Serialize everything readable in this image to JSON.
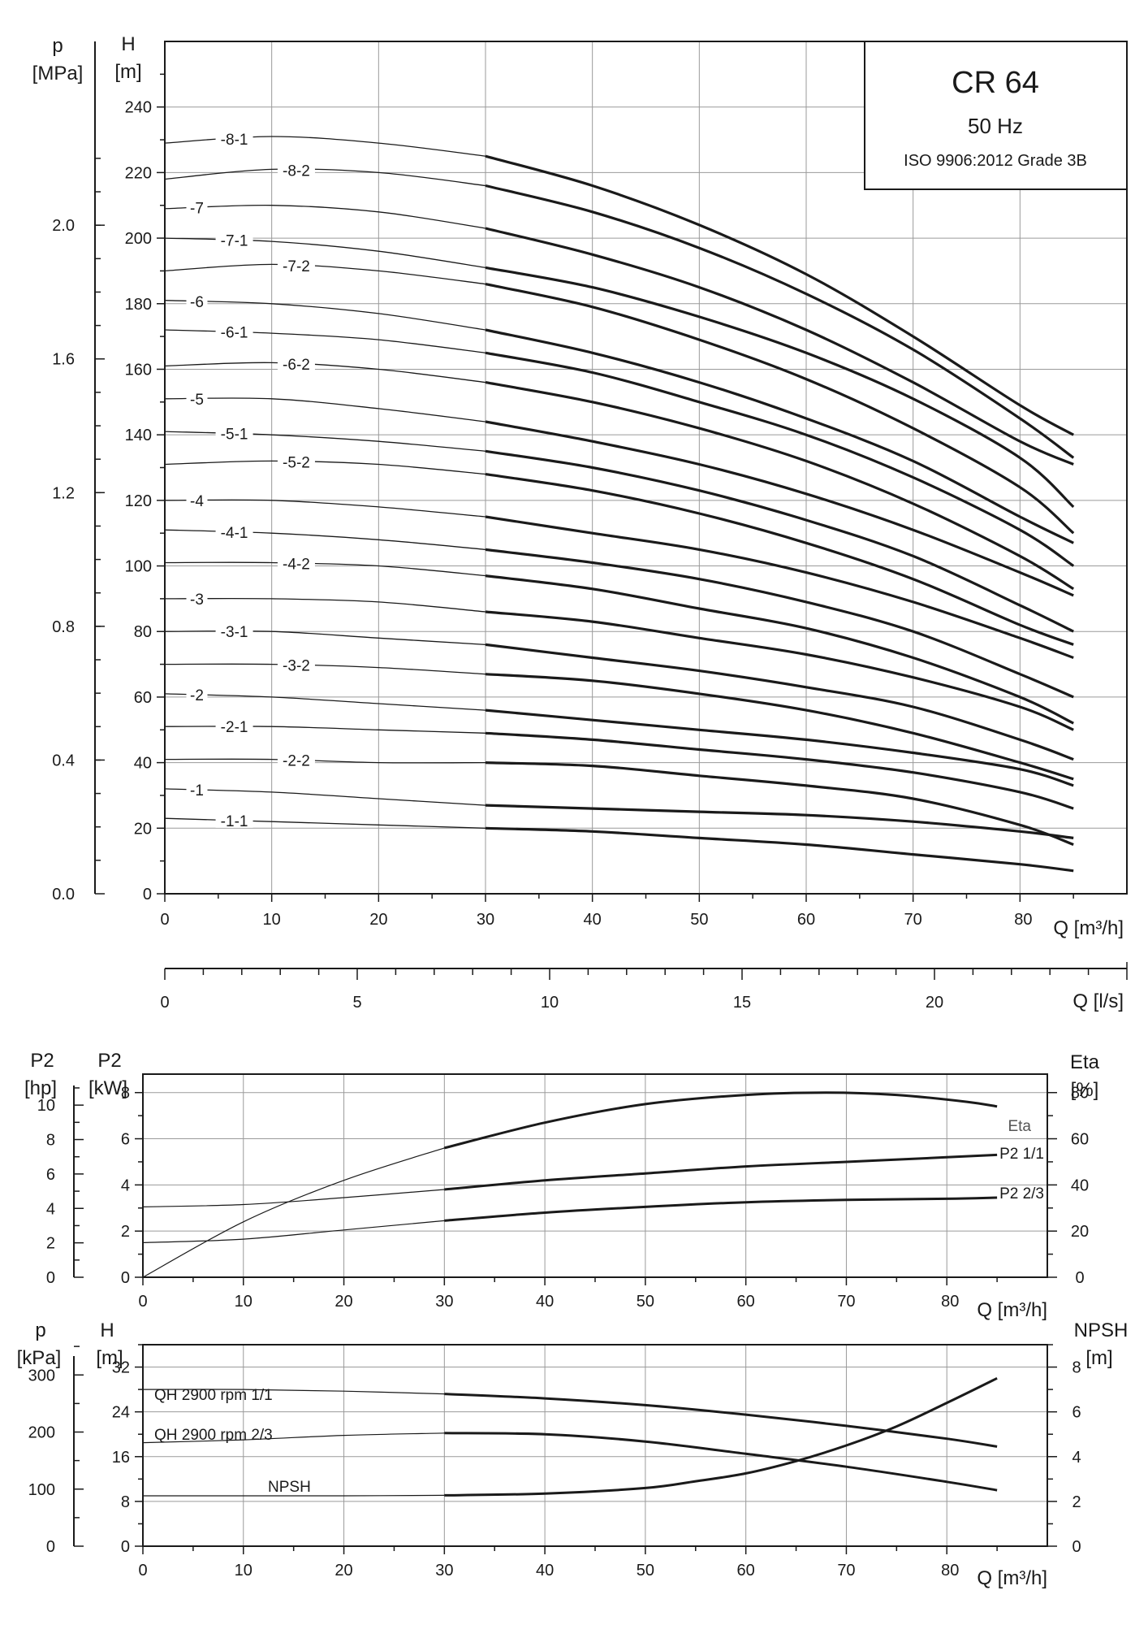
{
  "chart_data": [
    {
      "type": "line",
      "title": "CR 64",
      "subtitle": "50 Hz",
      "note": "ISO 9906:2012 Grade 3B",
      "xlabel": "Q [m³/h]",
      "xlabel_secondary": "Q [l/s]",
      "ylabel_left_p": "p",
      "ylabel_left_p_unit": "[MPa]",
      "ylabel_H": "H",
      "ylabel_H_unit": "[m]",
      "x_ticks": [
        "0",
        "10",
        "20",
        "30",
        "40",
        "50",
        "60",
        "70",
        "80"
      ],
      "x_secondary_ticks": [
        "0",
        "5",
        "10",
        "15",
        "20"
      ],
      "y_ticks": [
        "0",
        "20",
        "40",
        "60",
        "80",
        "100",
        "120",
        "140",
        "160",
        "180",
        "200",
        "220",
        "240"
      ],
      "p_ticks": [
        "0.0",
        "0.4",
        "0.8",
        "1.2",
        "1.6",
        "2.0"
      ],
      "xlim": [
        0,
        90
      ],
      "ylim": [
        0,
        260
      ],
      "curve_style": "thin from 0 to 30 m³/h, thick from 30 to 85 m³/h",
      "series": [
        {
          "name": "8-1",
          "x": [
            0,
            10,
            20,
            30,
            40,
            50,
            60,
            70,
            80,
            85
          ],
          "values": [
            229,
            231,
            229,
            225,
            216,
            204,
            189,
            170,
            149,
            140
          ]
        },
        {
          "name": "8-2",
          "x": [
            0,
            10,
            20,
            30,
            40,
            50,
            60,
            70,
            80,
            85
          ],
          "values": [
            218,
            221,
            220,
            216,
            208,
            197,
            183,
            166,
            145,
            133
          ]
        },
        {
          "name": "7",
          "x": [
            0,
            10,
            20,
            30,
            40,
            50,
            60,
            70,
            80,
            85
          ],
          "values": [
            209,
            210,
            208,
            203,
            195,
            185,
            172,
            156,
            138,
            131
          ]
        },
        {
          "name": "7-1",
          "x": [
            0,
            10,
            20,
            30,
            40,
            50,
            60,
            70,
            80,
            85
          ],
          "values": [
            200,
            199,
            196,
            191,
            185,
            176,
            165,
            151,
            133,
            118
          ]
        },
        {
          "name": "7-2",
          "x": [
            0,
            10,
            20,
            30,
            40,
            50,
            60,
            70,
            80,
            85
          ],
          "values": [
            190,
            192,
            190,
            186,
            179,
            169,
            157,
            142,
            124,
            110
          ]
        },
        {
          "name": "6",
          "x": [
            0,
            10,
            20,
            30,
            40,
            50,
            60,
            70,
            80,
            85
          ],
          "values": [
            181,
            180,
            177,
            172,
            165,
            156,
            145,
            132,
            115,
            107
          ]
        },
        {
          "name": "6-1",
          "x": [
            0,
            10,
            20,
            30,
            40,
            50,
            60,
            70,
            80,
            85
          ],
          "values": [
            172,
            171,
            169,
            165,
            159,
            150,
            140,
            127,
            111,
            100
          ]
        },
        {
          "name": "6-2",
          "x": [
            0,
            10,
            20,
            30,
            40,
            50,
            60,
            70,
            80,
            85
          ],
          "values": [
            161,
            162,
            160,
            156,
            150,
            142,
            132,
            119,
            103,
            93
          ]
        },
        {
          "name": "5",
          "x": [
            0,
            10,
            20,
            30,
            40,
            50,
            60,
            70,
            80,
            85
          ],
          "values": [
            151,
            151,
            148,
            144,
            138,
            131,
            122,
            111,
            98,
            91
          ]
        },
        {
          "name": "5-1",
          "x": [
            0,
            10,
            20,
            30,
            40,
            50,
            60,
            70,
            80,
            85
          ],
          "values": [
            141,
            140,
            138,
            135,
            130,
            123,
            114,
            103,
            88,
            80
          ]
        },
        {
          "name": "5-2",
          "x": [
            0,
            10,
            20,
            30,
            40,
            50,
            60,
            70,
            80,
            85
          ],
          "values": [
            131,
            132,
            131,
            128,
            123,
            116,
            107,
            96,
            82,
            76
          ]
        },
        {
          "name": "4",
          "x": [
            0,
            10,
            20,
            30,
            40,
            50,
            60,
            70,
            80,
            85
          ],
          "values": [
            120,
            120,
            118,
            115,
            110,
            105,
            98,
            89,
            78,
            72
          ]
        },
        {
          "name": "4-1",
          "x": [
            0,
            10,
            20,
            30,
            40,
            50,
            60,
            70,
            80,
            85
          ],
          "values": [
            111,
            110,
            108,
            105,
            101,
            96,
            89,
            80,
            67,
            60
          ]
        },
        {
          "name": "4-2",
          "x": [
            0,
            10,
            20,
            30,
            40,
            50,
            60,
            70,
            80,
            85
          ],
          "values": [
            101,
            101,
            100,
            97,
            93,
            87,
            81,
            72,
            60,
            52
          ]
        },
        {
          "name": "3",
          "x": [
            0,
            10,
            20,
            30,
            40,
            50,
            60,
            70,
            80,
            85
          ],
          "values": [
            90,
            90,
            89,
            86,
            83,
            78,
            73,
            66,
            57,
            50
          ]
        },
        {
          "name": "3-1",
          "x": [
            0,
            10,
            20,
            30,
            40,
            50,
            60,
            70,
            80,
            85
          ],
          "values": [
            80,
            80,
            78,
            76,
            72,
            68,
            63,
            57,
            47,
            41
          ]
        },
        {
          "name": "3-2",
          "x": [
            0,
            10,
            20,
            30,
            40,
            50,
            60,
            70,
            80,
            85
          ],
          "values": [
            70,
            70,
            69,
            67,
            65,
            61,
            56,
            49,
            40,
            35
          ]
        },
        {
          "name": "2",
          "x": [
            0,
            10,
            20,
            30,
            40,
            50,
            60,
            70,
            80,
            85
          ],
          "values": [
            61,
            60,
            58,
            56,
            53,
            50,
            47,
            43,
            38,
            33
          ]
        },
        {
          "name": "2-1",
          "x": [
            0,
            10,
            20,
            30,
            40,
            50,
            60,
            70,
            80,
            85
          ],
          "values": [
            51,
            51,
            50,
            49,
            47,
            44,
            41,
            37,
            31,
            26
          ]
        },
        {
          "name": "2-2",
          "x": [
            0,
            10,
            20,
            30,
            40,
            50,
            60,
            70,
            80,
            85
          ],
          "values": [
            41,
            41,
            40,
            40,
            39,
            36,
            33,
            29,
            21,
            15
          ]
        },
        {
          "name": "1",
          "x": [
            0,
            10,
            20,
            30,
            40,
            50,
            60,
            70,
            80,
            85
          ],
          "values": [
            32,
            31,
            29,
            27,
            26,
            25,
            24,
            22,
            19,
            17
          ]
        },
        {
          "name": "1-1",
          "x": [
            0,
            10,
            20,
            30,
            40,
            50,
            60,
            70,
            80,
            85
          ],
          "values": [
            23,
            22,
            21,
            20,
            19,
            17,
            15,
            12,
            9,
            7
          ]
        }
      ]
    },
    {
      "type": "line",
      "xlabel": "Q [m³/h]",
      "ylabel_left_hp": "P2",
      "ylabel_left_hp_unit": "[hp]",
      "ylabel_left_kw": "P2",
      "ylabel_left_kw_unit": "[kW]",
      "ylabel_right": "Eta",
      "ylabel_right_unit": "[%]",
      "x_ticks": [
        "0",
        "10",
        "20",
        "30",
        "40",
        "50",
        "60",
        "70",
        "80"
      ],
      "kw_ticks": [
        "0",
        "2",
        "4",
        "6",
        "8"
      ],
      "hp_ticks": [
        "0",
        "2",
        "4",
        "6",
        "8",
        "10"
      ],
      "eta_ticks": [
        "0",
        "20",
        "40",
        "60",
        "80"
      ],
      "xlim": [
        0,
        90
      ],
      "ylim_kw": [
        0,
        8.8
      ],
      "ylim_eta": [
        0,
        88
      ],
      "series": [
        {
          "name": "Eta",
          "axis": "eta",
          "x": [
            0,
            10,
            20,
            30,
            40,
            50,
            60,
            68,
            75,
            82,
            85
          ],
          "values": [
            0,
            24,
            42,
            56,
            67,
            75,
            79,
            80,
            79,
            76,
            74
          ]
        },
        {
          "name": "P2 1/1",
          "axis": "kw",
          "x": [
            0,
            10,
            20,
            30,
            40,
            50,
            60,
            70,
            80,
            85
          ],
          "values": [
            3.05,
            3.15,
            3.45,
            3.8,
            4.2,
            4.5,
            4.8,
            5.0,
            5.2,
            5.3
          ]
        },
        {
          "name": "P2 2/3",
          "axis": "kw",
          "x": [
            0,
            10,
            20,
            30,
            40,
            50,
            60,
            70,
            80,
            85
          ],
          "values": [
            1.5,
            1.65,
            2.05,
            2.45,
            2.8,
            3.05,
            3.25,
            3.35,
            3.4,
            3.45
          ]
        }
      ]
    },
    {
      "type": "line",
      "xlabel": "Q [m³/h]",
      "ylabel_left_p": "p",
      "ylabel_left_p_unit": "[kPa]",
      "ylabel_H": "H",
      "ylabel_H_unit": "[m]",
      "ylabel_right": "NPSH",
      "ylabel_right_unit": "[m]",
      "x_ticks": [
        "0",
        "10",
        "20",
        "30",
        "40",
        "50",
        "60",
        "70",
        "80"
      ],
      "h_ticks": [
        "0",
        "8",
        "16",
        "24",
        "32"
      ],
      "kpa_ticks": [
        "0",
        "100",
        "200",
        "300"
      ],
      "npsh_ticks": [
        "0",
        "2",
        "4",
        "6",
        "8"
      ],
      "xlim": [
        0,
        90
      ],
      "ylim_h": [
        0,
        36
      ],
      "ylim_npsh": [
        0,
        9
      ],
      "series": [
        {
          "name": "QH 2900 rpm 1/1",
          "axis": "h",
          "x": [
            0,
            10,
            20,
            30,
            40,
            50,
            60,
            70,
            80,
            85
          ],
          "values": [
            28,
            28,
            27.7,
            27.2,
            26.4,
            25.2,
            23.5,
            21.5,
            19.2,
            17.8
          ]
        },
        {
          "name": "QH 2900 rpm 2/3",
          "axis": "h",
          "x": [
            0,
            10,
            20,
            30,
            40,
            50,
            60,
            70,
            80,
            85
          ],
          "values": [
            18.5,
            19,
            19.8,
            20.2,
            20,
            18.7,
            16.5,
            14.2,
            11.5,
            10
          ]
        },
        {
          "name": "NPSH",
          "axis": "npsh",
          "x": [
            0,
            10,
            20,
            30,
            40,
            50,
            55,
            60,
            65,
            70,
            75,
            80,
            85
          ],
          "values": [
            2.25,
            2.25,
            2.25,
            2.27,
            2.35,
            2.6,
            2.9,
            3.25,
            3.8,
            4.5,
            5.35,
            6.4,
            7.5
          ]
        }
      ]
    }
  ]
}
